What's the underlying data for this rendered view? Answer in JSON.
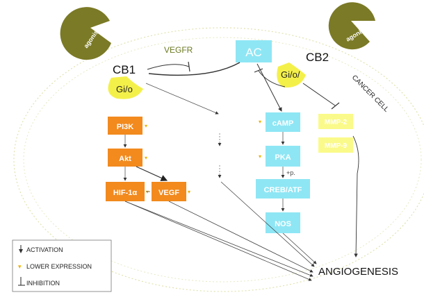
{
  "receptors": {
    "cb1": "CB1",
    "cb2": "CB2",
    "vegfr": "VEGFR",
    "gio_left": "Gi/o",
    "gio_right": "Gi/o/"
  },
  "agonist_label": "agonist",
  "cancer_cell_label": "CANCER CELL",
  "ac_label": "AC",
  "left_pathway": {
    "pi3k": "PI3K",
    "akt": "Akt",
    "hif": "HIF-1α",
    "vegf": "VEGF"
  },
  "middle_pathway": {
    "camp": "cAMP",
    "pka": "PKA",
    "creb": "CREB/ATF",
    "nos": "NOS",
    "phospho": "+p."
  },
  "right_pathway": {
    "mmp2": "MMP-2",
    "mmp9": "MMP-9"
  },
  "outcome": "ANGIOGENESIS",
  "legend": {
    "activation": "ACTIVATION",
    "lower_expression": "LOWER EXPRESSION",
    "inhibition": "INHIBITION"
  },
  "colors": {
    "orange": "#f28a1e",
    "cyan": "#8ee6f4",
    "yellow": "#fafa8a",
    "agonist": "#7b7a26",
    "gio": "#f4f04a",
    "arrow_dot": "#d04040",
    "lower_expr": "#f0b000"
  }
}
